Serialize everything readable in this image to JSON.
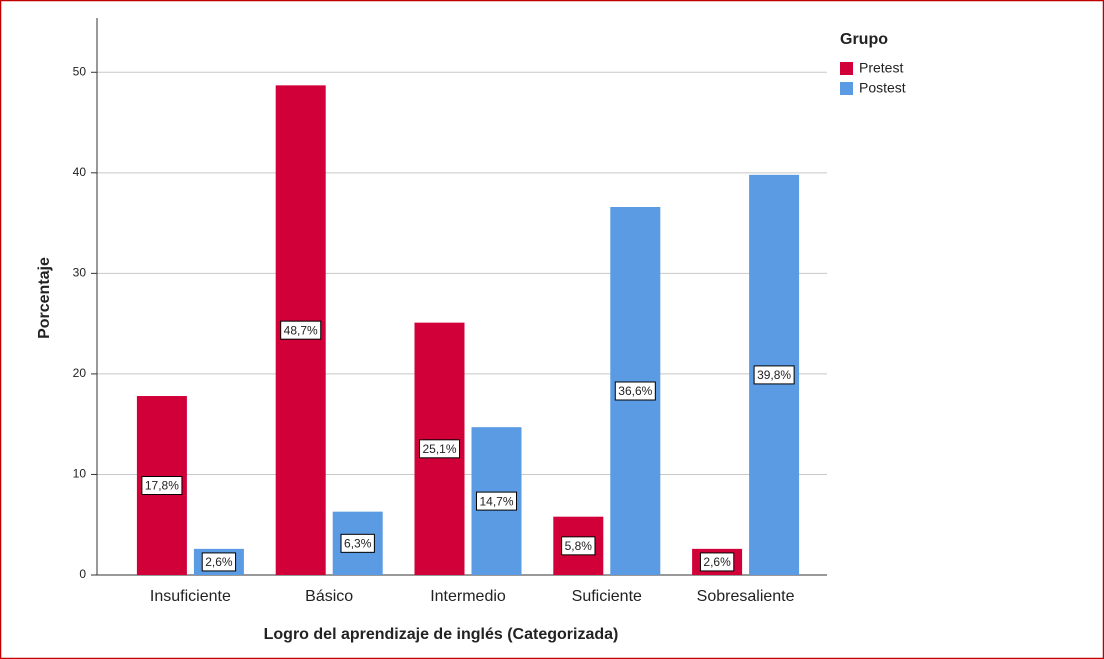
{
  "chart_data": {
    "type": "bar",
    "x_label": "Logro del aprendizaje de inglés (Categorizada)",
    "y_label": "Porcentaje",
    "legend_title": "Grupo",
    "legend": "top-right",
    "grid": true,
    "categories": [
      "Insuficiente",
      "Básico",
      "Intermedio",
      "Suficiente",
      "Sobresaliente"
    ],
    "series": [
      {
        "name": "Pretest",
        "color": "#d20038",
        "values": [
          17.8,
          48.7,
          25.1,
          5.8,
          2.6
        ],
        "value_labels": [
          "17,8%",
          "48,7%",
          "25,1%",
          "5,8%",
          "2,6%"
        ]
      },
      {
        "name": "Postest",
        "color": "#5a9be3",
        "values": [
          2.6,
          6.3,
          14.7,
          36.6,
          39.8
        ],
        "value_labels": [
          "2,6%",
          "6,3%",
          "14,7%",
          "36,6%",
          "39,8%"
        ]
      }
    ],
    "ylim": [
      0,
      55
    ],
    "yticks": [
      0,
      10,
      20,
      30,
      40,
      50
    ]
  }
}
